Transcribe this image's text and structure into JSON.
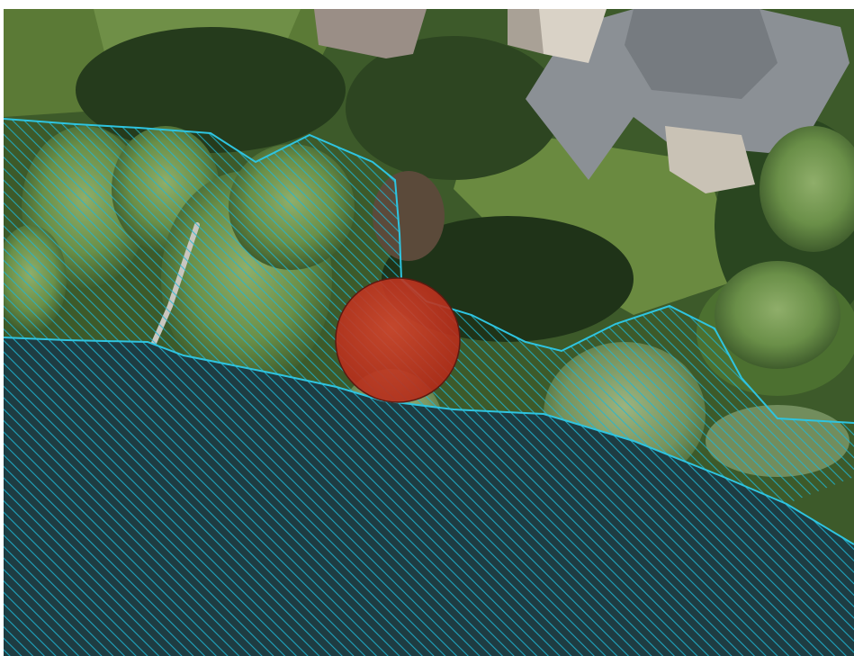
{
  "map": {
    "imagery": "aerial-photo",
    "colors": {
      "water": "#1f3f45",
      "hatch": "#1fb7d6",
      "marker_fill": "#c0301e",
      "marker_stroke": "#6a1a12",
      "lawn": "#5f7f3a",
      "roof": "#8a8f93"
    },
    "layers": [
      {
        "id": "water-body",
        "type": "polygon",
        "style": "diagonal-hatch"
      },
      {
        "id": "flood-zone",
        "type": "polygon",
        "style": "diagonal-hatch"
      },
      {
        "id": "shoreline",
        "type": "line"
      },
      {
        "id": "point-marker",
        "type": "point",
        "symbol": "circle"
      }
    ]
  }
}
